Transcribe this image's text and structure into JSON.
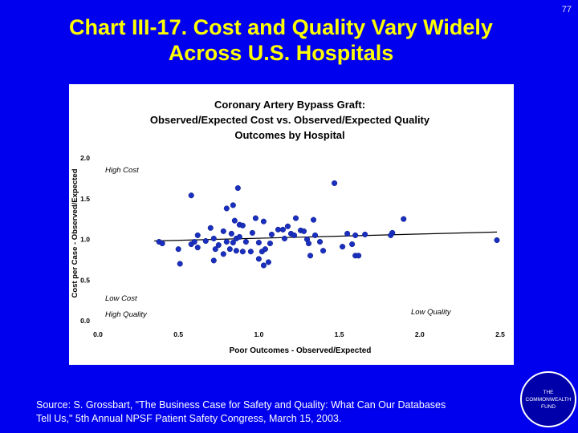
{
  "page_number": "77",
  "slide_title": {
    "line1": "Chart III-17. Cost and Quality Vary Widely",
    "line2": "Across U.S. Hospitals"
  },
  "source": {
    "line1": "Source: S. Grossbart, \"The Business Case for Safety and Quality: What Can Our Databases",
    "line2": "Tell Us,\" 5th Annual NPSF Patient Safety Congress, March 15, 2003."
  },
  "logo": {
    "line1": "THE",
    "line2": "COMMONWEALTH",
    "line3": "FUND"
  },
  "colors": {
    "background": "#0000ee",
    "title": "#ffff00",
    "points": "#1a2fbf",
    "text": "#ffffff"
  },
  "chart_data": {
    "type": "scatter",
    "title": "Coronary Artery Bypass Graft:",
    "subtitle1": "Observed/Expected Cost vs. Observed/Expected Quality",
    "subtitle2": "Outcomes by Hospital",
    "xlabel": "Poor Outcomes - Observed/Expected",
    "ylabel": "Cost per Case - Observed/Expected",
    "xlim": [
      0.0,
      2.5
    ],
    "ylim": [
      0.0,
      2.0
    ],
    "xticks": [
      "0.0",
      "0.5",
      "1.0",
      "1.5",
      "2.0",
      "2.5"
    ],
    "yticks": [
      "0.0",
      "0.5",
      "1.0",
      "1.5",
      "2.0"
    ],
    "quadrant_labels": {
      "high_cost": "High Cost",
      "low_cost": "Low Cost",
      "high_quality": "High Quality",
      "low_quality": "Low Quality"
    },
    "trendline": [
      [
        0.35,
        0.98
      ],
      [
        2.48,
        1.09
      ]
    ],
    "points": [
      [
        0.38,
        0.97
      ],
      [
        0.4,
        0.95
      ],
      [
        0.5,
        0.88
      ],
      [
        0.51,
        0.7
      ],
      [
        0.58,
        1.54
      ],
      [
        0.58,
        0.94
      ],
      [
        0.6,
        0.97
      ],
      [
        0.62,
        1.05
      ],
      [
        0.62,
        0.9
      ],
      [
        0.67,
        0.98
      ],
      [
        0.7,
        1.14
      ],
      [
        0.72,
        1.01
      ],
      [
        0.72,
        0.74
      ],
      [
        0.73,
        0.88
      ],
      [
        0.75,
        0.93
      ],
      [
        0.78,
        1.1
      ],
      [
        0.78,
        0.82
      ],
      [
        0.8,
        0.97
      ],
      [
        0.8,
        1.38
      ],
      [
        0.82,
        0.88
      ],
      [
        0.83,
        1.07
      ],
      [
        0.84,
        1.42
      ],
      [
        0.84,
        0.96
      ],
      [
        0.85,
        1.23
      ],
      [
        0.86,
        1.01
      ],
      [
        0.86,
        0.86
      ],
      [
        0.87,
        1.63
      ],
      [
        0.88,
        1.18
      ],
      [
        0.88,
        1.03
      ],
      [
        0.9,
        1.17
      ],
      [
        0.9,
        0.85
      ],
      [
        0.92,
        0.97
      ],
      [
        0.95,
        0.85
      ],
      [
        0.96,
        1.08
      ],
      [
        0.98,
        1.26
      ],
      [
        1.0,
        0.76
      ],
      [
        1.0,
        0.96
      ],
      [
        1.02,
        0.85
      ],
      [
        1.03,
        1.22
      ],
      [
        1.03,
        0.68
      ],
      [
        1.04,
        0.88
      ],
      [
        1.06,
        0.72
      ],
      [
        1.07,
        0.95
      ],
      [
        1.08,
        1.06
      ],
      [
        1.12,
        1.12
      ],
      [
        1.15,
        1.12
      ],
      [
        1.16,
        1.01
      ],
      [
        1.18,
        1.16
      ],
      [
        1.2,
        1.07
      ],
      [
        1.22,
        1.05
      ],
      [
        1.23,
        1.26
      ],
      [
        1.26,
        1.11
      ],
      [
        1.28,
        1.1
      ],
      [
        1.3,
        1.0
      ],
      [
        1.31,
        0.95
      ],
      [
        1.32,
        0.8
      ],
      [
        1.34,
        1.24
      ],
      [
        1.35,
        1.05
      ],
      [
        1.38,
        0.97
      ],
      [
        1.4,
        0.86
      ],
      [
        1.47,
        1.69
      ],
      [
        1.52,
        0.91
      ],
      [
        1.55,
        1.07
      ],
      [
        1.58,
        0.94
      ],
      [
        1.6,
        1.05
      ],
      [
        1.6,
        0.8
      ],
      [
        1.62,
        0.8
      ],
      [
        1.66,
        1.06
      ],
      [
        1.83,
        1.08
      ],
      [
        1.82,
        1.05
      ],
      [
        1.9,
        1.25
      ],
      [
        2.48,
        0.99
      ]
    ]
  }
}
